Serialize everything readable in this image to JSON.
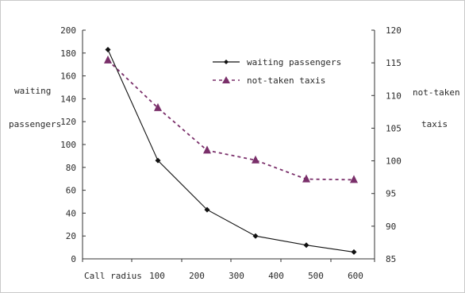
{
  "chart_data": {
    "type": "line",
    "xlabel": "Call radius",
    "categories": [
      "100",
      "200",
      "300",
      "400",
      "500",
      "600"
    ],
    "left_axis": {
      "label_lines": [
        "waiting",
        "passengers"
      ],
      "range": [
        0,
        200
      ],
      "ticks": [
        "0",
        "20",
        "40",
        "60",
        "80",
        "100",
        "120",
        "140",
        "160",
        "180",
        "200"
      ]
    },
    "right_axis": {
      "label_lines": [
        "not-taken",
        "taxis"
      ],
      "range": [
        85,
        120
      ],
      "ticks": [
        "85",
        "90",
        "95",
        "100",
        "105",
        "110",
        "115",
        "120"
      ]
    },
    "series": [
      {
        "name": "waiting passengers",
        "axis": "left",
        "color": "#111111",
        "marker": "diamond",
        "values": [
          183,
          86,
          43,
          20,
          12,
          6
        ]
      },
      {
        "name": "not-taken taxis",
        "axis": "right",
        "color": "#7a2f6a",
        "marker": "triangle",
        "values": [
          115.4,
          108.1,
          101.6,
          100.1,
          97.2,
          97.1
        ]
      }
    ],
    "legend": "top-right",
    "grid": false
  }
}
